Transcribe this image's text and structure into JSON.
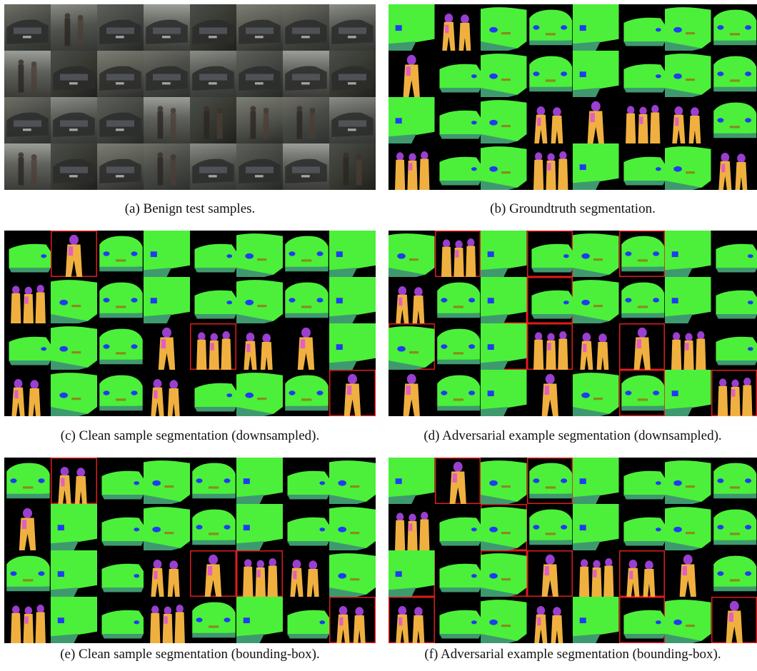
{
  "figure": {
    "panels": [
      {
        "id": "a",
        "caption": "(a) Benign test samples."
      },
      {
        "id": "b",
        "caption": "(b) Groundtruth segmentation."
      },
      {
        "id": "c",
        "caption": "(c) Clean sample segmentation (downsampled)."
      },
      {
        "id": "d",
        "caption": "(d) Adversarial example segmentation (downsampled)."
      },
      {
        "id": "e",
        "caption": "(e) Clean sample segmentation (bounding-box)."
      },
      {
        "id": "f",
        "caption": "(f) Adversarial example segmentation (bounding-box)."
      }
    ],
    "grid": {
      "rows": 4,
      "cols": 8
    },
    "colors": {
      "background": "#000000",
      "car": "#4cf03a",
      "car_shadow": "#3e9a6e",
      "window": "#1f3cf0",
      "plate": "#8a8a1e",
      "person": "#f0b040",
      "head": "#9a3fd0",
      "pink": "#e060c0",
      "flag_border": "#e11b1b"
    },
    "flagged_tiles": {
      "c": [
        [
          0,
          1
        ],
        [
          2,
          4
        ],
        [
          3,
          7
        ]
      ],
      "d": [
        [
          0,
          1
        ],
        [
          0,
          3
        ],
        [
          0,
          5
        ],
        [
          1,
          2
        ],
        [
          1,
          3
        ],
        [
          2,
          0
        ],
        [
          2,
          2
        ],
        [
          2,
          3
        ],
        [
          2,
          5
        ],
        [
          3,
          5
        ],
        [
          3,
          7
        ]
      ],
      "e": [
        [
          0,
          1
        ],
        [
          2,
          4
        ],
        [
          2,
          5
        ],
        [
          3,
          7
        ]
      ],
      "f": [
        [
          0,
          1
        ],
        [
          0,
          3
        ],
        [
          1,
          2
        ],
        [
          2,
          0
        ],
        [
          2,
          2
        ],
        [
          2,
          3
        ],
        [
          2,
          5
        ],
        [
          3,
          0
        ],
        [
          3,
          5
        ],
        [
          3,
          7
        ]
      ]
    }
  }
}
